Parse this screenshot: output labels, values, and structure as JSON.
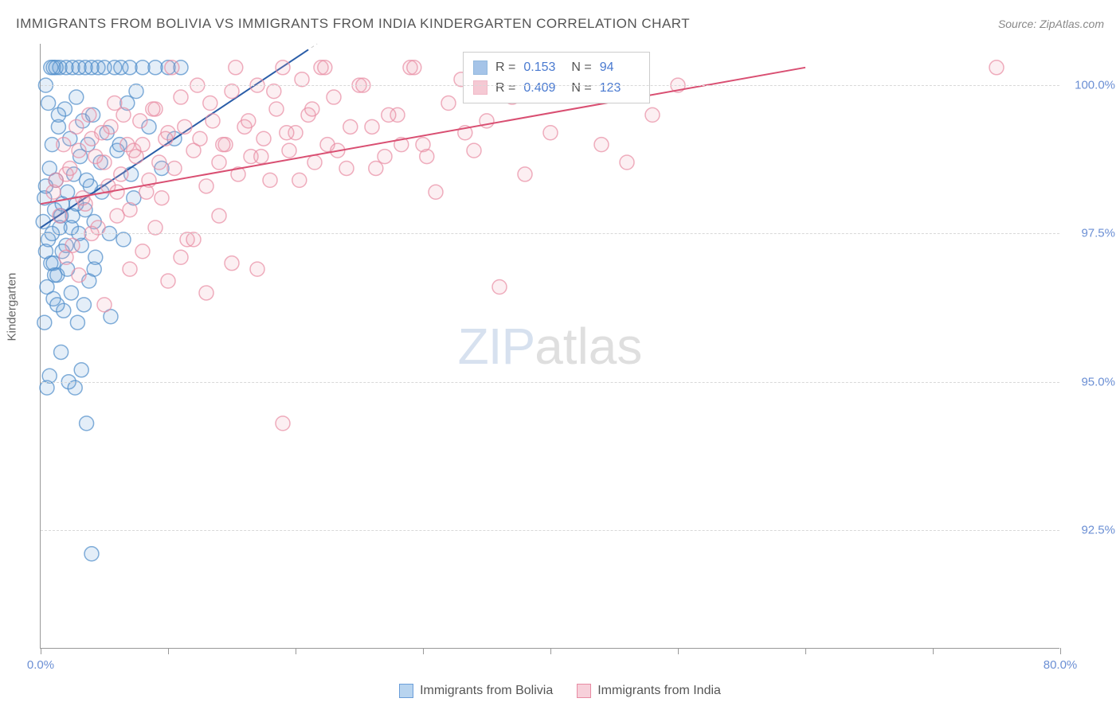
{
  "header": {
    "title": "IMMIGRANTS FROM BOLIVIA VS IMMIGRANTS FROM INDIA KINDERGARTEN CORRELATION CHART",
    "source": "Source: ZipAtlas.com"
  },
  "watermark": {
    "part1": "ZIP",
    "part2": "atlas"
  },
  "chart": {
    "type": "scatter",
    "ylabel": "Kindergarten",
    "background_color": "#ffffff",
    "grid_color": "#d8d8d8",
    "axis_color": "#999999",
    "xlim": [
      0,
      80
    ],
    "ylim": [
      90.5,
      100.7
    ],
    "xticks": [
      0,
      10,
      20,
      30,
      40,
      50,
      60,
      70,
      80
    ],
    "xtick_labels": {
      "0": "0.0%",
      "80": "80.0%"
    },
    "yticks": [
      92.5,
      95.0,
      97.5,
      100.0
    ],
    "ytick_labels": [
      "92.5%",
      "95.0%",
      "97.5%",
      "100.0%"
    ],
    "tick_label_color": "#6b8fd4",
    "tick_label_fontsize": 15,
    "marker_radius": 9,
    "marker_fill_opacity": 0.18,
    "marker_stroke_opacity": 0.7,
    "marker_stroke_width": 1.5,
    "series": [
      {
        "name": "Immigrants from Bolivia",
        "color": "#6b9ed9",
        "stroke": "#4d8bc9",
        "R": "0.153",
        "N": "94",
        "trend": {
          "x1": 0,
          "y1": 97.6,
          "x2": 21,
          "y2": 100.6,
          "color": "#2a5da8",
          "width": 2,
          "dash_extend": true
        },
        "points": [
          [
            0.2,
            97.7
          ],
          [
            0.3,
            98.1
          ],
          [
            0.4,
            97.2
          ],
          [
            0.5,
            96.6
          ],
          [
            0.6,
            97.4
          ],
          [
            0.7,
            98.6
          ],
          [
            0.8,
            97.0
          ],
          [
            0.9,
            99.0
          ],
          [
            1.0,
            96.4
          ],
          [
            1.1,
            97.9
          ],
          [
            1.2,
            98.4
          ],
          [
            1.3,
            96.8
          ],
          [
            1.4,
            99.3
          ],
          [
            1.5,
            97.6
          ],
          [
            1.6,
            95.5
          ],
          [
            1.7,
            98.0
          ],
          [
            1.8,
            96.2
          ],
          [
            1.9,
            99.6
          ],
          [
            2.0,
            97.3
          ],
          [
            2.1,
            98.2
          ],
          [
            2.2,
            95.0
          ],
          [
            2.3,
            99.1
          ],
          [
            2.4,
            96.5
          ],
          [
            2.5,
            97.8
          ],
          [
            2.6,
            98.5
          ],
          [
            2.7,
            94.9
          ],
          [
            2.8,
            99.8
          ],
          [
            2.9,
            96.0
          ],
          [
            3.0,
            97.5
          ],
          [
            3.1,
            98.8
          ],
          [
            3.2,
            95.2
          ],
          [
            3.3,
            99.4
          ],
          [
            3.4,
            96.3
          ],
          [
            3.5,
            97.9
          ],
          [
            3.6,
            94.3
          ],
          [
            3.7,
            99.0
          ],
          [
            3.8,
            96.7
          ],
          [
            3.9,
            98.3
          ],
          [
            4.0,
            92.1
          ],
          [
            4.1,
            99.5
          ],
          [
            4.2,
            96.9
          ],
          [
            4.3,
            97.1
          ],
          [
            4.5,
            100.3
          ],
          [
            4.7,
            98.7
          ],
          [
            5.0,
            100.3
          ],
          [
            5.2,
            99.2
          ],
          [
            5.5,
            96.1
          ],
          [
            5.8,
            100.3
          ],
          [
            6.0,
            98.9
          ],
          [
            6.3,
            100.3
          ],
          [
            6.5,
            97.4
          ],
          [
            6.8,
            99.7
          ],
          [
            7.0,
            100.3
          ],
          [
            7.3,
            98.1
          ],
          [
            7.5,
            99.9
          ],
          [
            8.0,
            100.3
          ],
          [
            8.5,
            99.3
          ],
          [
            9.0,
            100.3
          ],
          [
            9.5,
            98.6
          ],
          [
            10.0,
            100.3
          ],
          [
            10.5,
            99.1
          ],
          [
            11.0,
            100.3
          ],
          [
            1.0,
            100.3
          ],
          [
            1.5,
            100.3
          ],
          [
            2.0,
            100.3
          ],
          [
            2.5,
            100.3
          ],
          [
            3.0,
            100.3
          ],
          [
            3.5,
            100.3
          ],
          [
            4.0,
            100.3
          ],
          [
            0.4,
            100.0
          ],
          [
            0.6,
            99.7
          ],
          [
            0.8,
            100.3
          ],
          [
            1.2,
            100.3
          ],
          [
            1.4,
            99.5
          ],
          [
            0.3,
            96.0
          ],
          [
            0.5,
            94.9
          ],
          [
            0.7,
            95.1
          ],
          [
            1.0,
            97.0
          ],
          [
            1.3,
            96.3
          ],
          [
            1.6,
            97.8
          ],
          [
            0.4,
            98.3
          ],
          [
            0.9,
            97.5
          ],
          [
            1.1,
            96.8
          ],
          [
            1.7,
            97.2
          ],
          [
            2.1,
            96.9
          ],
          [
            2.4,
            97.6
          ],
          [
            2.8,
            98.0
          ],
          [
            3.2,
            97.3
          ],
          [
            3.6,
            98.4
          ],
          [
            4.2,
            97.7
          ],
          [
            4.8,
            98.2
          ],
          [
            5.4,
            97.5
          ],
          [
            6.2,
            99.0
          ],
          [
            7.1,
            98.5
          ]
        ]
      },
      {
        "name": "Immigrants from India",
        "color": "#f0a6b8",
        "stroke": "#e88ba3",
        "R": "0.409",
        "N": "123",
        "trend": {
          "x1": 0,
          "y1": 98.0,
          "x2": 60,
          "y2": 100.3,
          "color": "#d94f72",
          "width": 2,
          "dash_extend": false
        },
        "points": [
          [
            1.0,
            98.2
          ],
          [
            1.5,
            97.8
          ],
          [
            2.0,
            98.5
          ],
          [
            2.5,
            97.3
          ],
          [
            3.0,
            98.9
          ],
          [
            3.5,
            98.0
          ],
          [
            4.0,
            99.1
          ],
          [
            4.5,
            97.6
          ],
          [
            5.0,
            98.7
          ],
          [
            5.5,
            99.3
          ],
          [
            6.0,
            98.2
          ],
          [
            6.5,
            99.5
          ],
          [
            7.0,
            97.9
          ],
          [
            7.5,
            98.8
          ],
          [
            8.0,
            99.0
          ],
          [
            8.5,
            98.4
          ],
          [
            9.0,
            99.6
          ],
          [
            9.5,
            98.1
          ],
          [
            10.0,
            99.2
          ],
          [
            10.5,
            98.6
          ],
          [
            11.0,
            99.8
          ],
          [
            11.5,
            97.4
          ],
          [
            12.0,
            98.9
          ],
          [
            12.5,
            99.1
          ],
          [
            13.0,
            98.3
          ],
          [
            13.5,
            99.4
          ],
          [
            14.0,
            98.7
          ],
          [
            14.5,
            99.0
          ],
          [
            15.0,
            99.9
          ],
          [
            15.5,
            98.5
          ],
          [
            16.0,
            99.3
          ],
          [
            16.5,
            98.8
          ],
          [
            17.0,
            100.0
          ],
          [
            17.5,
            99.1
          ],
          [
            18.0,
            98.4
          ],
          [
            18.5,
            99.6
          ],
          [
            19.0,
            100.3
          ],
          [
            19.5,
            98.9
          ],
          [
            20.0,
            99.2
          ],
          [
            20.5,
            100.1
          ],
          [
            21.0,
            99.5
          ],
          [
            21.5,
            98.7
          ],
          [
            22.0,
            100.3
          ],
          [
            22.5,
            99.0
          ],
          [
            23.0,
            99.8
          ],
          [
            24.0,
            98.6
          ],
          [
            25.0,
            100.0
          ],
          [
            26.0,
            99.3
          ],
          [
            27.0,
            98.8
          ],
          [
            28.0,
            99.5
          ],
          [
            29.0,
            100.3
          ],
          [
            30.0,
            99.0
          ],
          [
            31.0,
            98.2
          ],
          [
            32.0,
            99.7
          ],
          [
            33.0,
            100.1
          ],
          [
            34.0,
            98.9
          ],
          [
            35.0,
            99.4
          ],
          [
            36.0,
            96.6
          ],
          [
            37.0,
            99.8
          ],
          [
            38.0,
            98.5
          ],
          [
            40.0,
            99.2
          ],
          [
            42.0,
            100.3
          ],
          [
            44.0,
            99.0
          ],
          [
            46.0,
            98.7
          ],
          [
            48.0,
            99.5
          ],
          [
            50.0,
            100.0
          ],
          [
            75.0,
            100.3
          ],
          [
            2.0,
            97.1
          ],
          [
            3.0,
            96.8
          ],
          [
            4.0,
            97.5
          ],
          [
            5.0,
            96.3
          ],
          [
            6.0,
            97.8
          ],
          [
            7.0,
            96.9
          ],
          [
            8.0,
            97.2
          ],
          [
            9.0,
            97.6
          ],
          [
            10.0,
            96.7
          ],
          [
            11.0,
            97.1
          ],
          [
            12.0,
            97.4
          ],
          [
            13.0,
            96.5
          ],
          [
            14.0,
            97.8
          ],
          [
            15.0,
            97.0
          ],
          [
            17.0,
            96.9
          ],
          [
            19.0,
            94.3
          ],
          [
            1.2,
            98.4
          ],
          [
            1.8,
            99.0
          ],
          [
            2.3,
            98.6
          ],
          [
            2.8,
            99.3
          ],
          [
            3.3,
            98.1
          ],
          [
            3.8,
            99.5
          ],
          [
            4.3,
            98.8
          ],
          [
            4.8,
            99.2
          ],
          [
            5.3,
            98.3
          ],
          [
            5.8,
            99.7
          ],
          [
            6.3,
            98.5
          ],
          [
            6.8,
            99.0
          ],
          [
            7.3,
            98.9
          ],
          [
            7.8,
            99.4
          ],
          [
            8.3,
            98.2
          ],
          [
            8.8,
            99.6
          ],
          [
            9.3,
            98.7
          ],
          [
            9.8,
            99.1
          ],
          [
            10.3,
            100.3
          ],
          [
            11.3,
            99.3
          ],
          [
            12.3,
            100.0
          ],
          [
            13.3,
            99.7
          ],
          [
            14.3,
            99.0
          ],
          [
            15.3,
            100.3
          ],
          [
            16.3,
            99.4
          ],
          [
            17.3,
            98.8
          ],
          [
            18.3,
            99.9
          ],
          [
            19.3,
            99.2
          ],
          [
            20.3,
            98.4
          ],
          [
            21.3,
            99.6
          ],
          [
            22.3,
            100.3
          ],
          [
            23.3,
            98.9
          ],
          [
            24.3,
            99.3
          ],
          [
            25.3,
            100.0
          ],
          [
            26.3,
            98.6
          ],
          [
            27.3,
            99.5
          ],
          [
            28.3,
            99.0
          ],
          [
            29.3,
            100.3
          ],
          [
            30.3,
            98.8
          ],
          [
            33.3,
            99.2
          ]
        ]
      }
    ],
    "legend_bottom": [
      {
        "label": "Immigrants from Bolivia",
        "fill": "#b8d4ef",
        "stroke": "#6b9ed9"
      },
      {
        "label": "Immigrants from India",
        "fill": "#f7d0da",
        "stroke": "#e88ba3"
      }
    ]
  }
}
